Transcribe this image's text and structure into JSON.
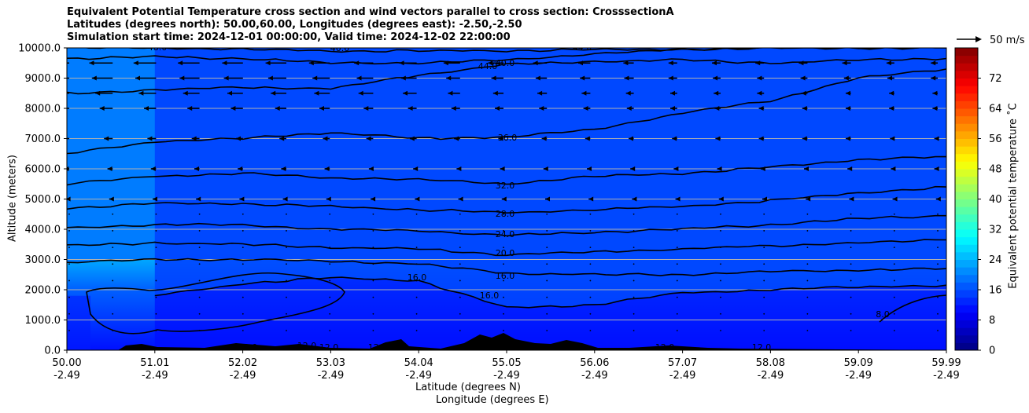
{
  "chart_data": {
    "type": "filled-contour",
    "title_lines": [
      "Equivalent Potential Temperature cross section and wind vectors parallel to cross section: CrosssectionA",
      "Latitudes (degrees north): 50.00,60.00, Longitudes (degrees east): -2.50,-2.50",
      "Simulation start time: 2024-12-01 00:00:00, Valid time: 2024-12-02 22:00:00"
    ],
    "xlabel": "Latitude (degrees N)",
    "xlabel2": "Longitude (degrees E)",
    "ylabel": "Altitude (meters)",
    "x_ticks": [
      {
        "lat": "50.00",
        "lon": "-2.49"
      },
      {
        "lat": "51.01",
        "lon": "-2.49"
      },
      {
        "lat": "52.02",
        "lon": "-2.49"
      },
      {
        "lat": "53.03",
        "lon": "-2.49"
      },
      {
        "lat": "54.04",
        "lon": "-2.49"
      },
      {
        "lat": "55.05",
        "lon": "-2.49"
      },
      {
        "lat": "56.06",
        "lon": "-2.49"
      },
      {
        "lat": "57.07",
        "lon": "-2.49"
      },
      {
        "lat": "58.08",
        "lon": "-2.49"
      },
      {
        "lat": "59.09",
        "lon": "-2.49"
      },
      {
        "lat": "59.99",
        "lon": "-2.49"
      }
    ],
    "y_ticks": [
      "0.0",
      "1000.0",
      "2000.0",
      "3000.0",
      "4000.0",
      "5000.0",
      "6000.0",
      "7000.0",
      "8000.0",
      "9000.0",
      "10000.0"
    ],
    "ylim": [
      0,
      10000
    ],
    "grid": "horizontal",
    "colorbar": {
      "label": "Equivalent potential temperature ˚C",
      "ticks": [
        "0",
        "8",
        "16",
        "24",
        "32",
        "40",
        "48",
        "56",
        "64",
        "72"
      ],
      "range": [
        0,
        80
      ],
      "colormap": "jet"
    },
    "contour_labels": [
      "48.0",
      "40.0",
      "44.0",
      "44.0",
      "40.0",
      "36.0",
      "32.0",
      "28.0",
      "24.0",
      "20.0",
      "16.0",
      "16.0",
      "16.0",
      "12.0",
      "12.0",
      "12.0",
      "12.0",
      "12.0",
      "12.0",
      "8.0"
    ],
    "contour_levels": [
      {
        "label": "48.0",
        "z": [
          10000,
          10000,
          9950,
          9900,
          9900,
          9900,
          9950,
          9950,
          10000,
          10000,
          10000
        ]
      },
      {
        "label": "44.0",
        "z": [
          9650,
          9700,
          9650,
          9500,
          9500,
          9600,
          9800,
          9950,
          10000,
          10000,
          10000
        ]
      },
      {
        "label": "40.0",
        "z": [
          8500,
          8600,
          8700,
          8650,
          9100,
          9450,
          9550,
          9600,
          9500,
          9600,
          9650
        ]
      },
      {
        "label": "36.0",
        "z": [
          6500,
          6900,
          7000,
          7200,
          7000,
          7050,
          7300,
          7850,
          8250,
          9000,
          9300
        ]
      },
      {
        "label": "32.0",
        "z": [
          5500,
          5750,
          5850,
          5700,
          5650,
          5500,
          5750,
          5850,
          6050,
          6300,
          6400
        ]
      },
      {
        "label": "28.0",
        "z": [
          4700,
          4850,
          4850,
          4750,
          4650,
          4550,
          4650,
          4750,
          4950,
          5200,
          5400
        ]
      },
      {
        "label": "24.0",
        "z": [
          4050,
          4150,
          4150,
          4000,
          3950,
          3800,
          3900,
          4000,
          4150,
          4350,
          4450
        ]
      },
      {
        "label": "20.0",
        "z": [
          3450,
          3550,
          3500,
          3400,
          3350,
          3150,
          3250,
          3350,
          3450,
          3550,
          3650
        ]
      },
      {
        "label": "16.0",
        "z": [
          2900,
          3000,
          3000,
          2950,
          2850,
          2550,
          2500,
          2500,
          2600,
          2650,
          2700
        ]
      },
      {
        "label": "12.0",
        "z": [
          null,
          1800,
          2200,
          2400,
          2300,
          1400,
          1500,
          1900,
          2000,
          2100,
          2150
        ]
      }
    ],
    "vector_key": {
      "label": "50 m/s",
      "speed": 50
    },
    "wind_rows": [
      {
        "alt": 9500,
        "u": [
          -14,
          -13,
          -12,
          -12,
          -10,
          -9,
          -7,
          -5,
          -5,
          -5,
          -4
        ]
      },
      {
        "alt": 9000,
        "u": [
          -12,
          -12,
          -11,
          -10,
          -9,
          -7,
          -6,
          -5,
          -4,
          -4,
          -4
        ]
      },
      {
        "alt": 8500,
        "u": [
          -10,
          -10,
          -9,
          -9,
          -8,
          -6,
          -5,
          -4,
          -4,
          -3,
          -3
        ]
      },
      {
        "alt": 8000,
        "u": [
          -8,
          -7,
          -7,
          -6,
          -5,
          -5,
          -4,
          -4,
          -3,
          -3,
          -3
        ]
      },
      {
        "alt": 7000,
        "u": [
          -5,
          -5,
          -4,
          -4,
          -4,
          -3,
          -3,
          -3,
          -3,
          -3,
          -2
        ]
      },
      {
        "alt": 6000,
        "u": [
          -3,
          -3,
          -3,
          -3,
          -2,
          -2,
          -2,
          -2,
          -2,
          -2,
          -2
        ]
      },
      {
        "alt": 5000,
        "u": [
          -2,
          -2,
          -2,
          -2,
          -1,
          -1,
          -1,
          -1,
          -1,
          -1,
          -1
        ]
      }
    ]
  }
}
